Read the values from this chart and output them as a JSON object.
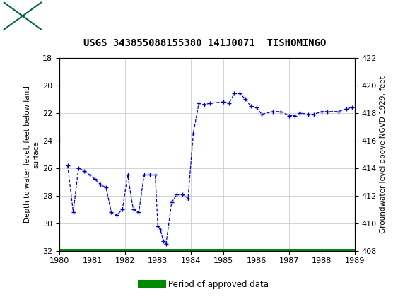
{
  "title": "USGS 343855088155380 141J0071  TISHOMINGO",
  "header_bg_color": "#006644",
  "header_text_color": "#ffffff",
  "ylabel_left": "Depth to water level, feet below land\nsurface",
  "ylabel_right": "Groundwater level above NGVD 1929, feet",
  "ylim_left": [
    32,
    18
  ],
  "ylim_right": [
    408,
    422
  ],
  "xlim": [
    1980,
    1989
  ],
  "yticks_left": [
    18,
    20,
    22,
    24,
    26,
    28,
    30,
    32
  ],
  "yticks_right": [
    408,
    410,
    412,
    414,
    416,
    418,
    420,
    422
  ],
  "xticks": [
    1980,
    1981,
    1982,
    1983,
    1984,
    1985,
    1986,
    1987,
    1988,
    1989
  ],
  "line_color": "#0000cc",
  "grid_color": "#cccccc",
  "bg_color": "#ffffff",
  "legend_label": "Period of approved data",
  "legend_color": "#008800",
  "x_data": [
    1980.25,
    1980.42,
    1980.58,
    1980.75,
    1980.92,
    1981.08,
    1981.25,
    1981.42,
    1981.58,
    1981.75,
    1981.92,
    1982.08,
    1982.25,
    1982.42,
    1982.58,
    1982.75,
    1982.92,
    1983.0,
    1983.08,
    1983.17,
    1983.25,
    1983.42,
    1983.58,
    1983.75,
    1983.92,
    1984.08,
    1984.25,
    1984.42,
    1984.58,
    1985.0,
    1985.17,
    1985.33,
    1985.5,
    1985.67,
    1985.83,
    1986.0,
    1986.17,
    1986.5,
    1986.75,
    1987.0,
    1987.17,
    1987.33,
    1987.58,
    1987.75,
    1988.0,
    1988.17,
    1988.5,
    1988.75,
    1988.92
  ],
  "y_data": [
    25.8,
    29.2,
    26.0,
    26.2,
    26.5,
    26.8,
    27.2,
    27.4,
    29.2,
    29.4,
    29.0,
    26.5,
    29.0,
    29.2,
    26.5,
    26.5,
    26.5,
    30.2,
    30.5,
    31.3,
    31.5,
    28.5,
    27.9,
    27.9,
    28.2,
    23.5,
    21.3,
    21.4,
    21.3,
    21.2,
    21.3,
    20.6,
    20.6,
    21.0,
    21.5,
    21.6,
    22.1,
    21.9,
    21.9,
    22.2,
    22.2,
    22.0,
    22.1,
    22.1,
    21.9,
    21.9,
    21.9,
    21.7,
    21.6
  ]
}
